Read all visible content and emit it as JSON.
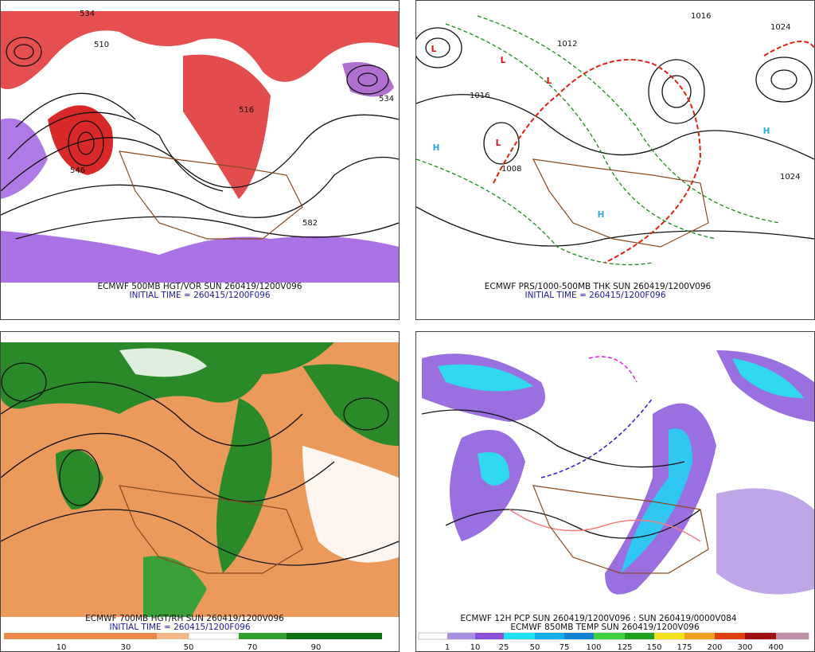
{
  "panels": [
    {
      "caption": "ECMWF 500MB HGT/VOR SUN 260419/1200V096",
      "initial_time": "INITIAL TIME = 260415/1200F096",
      "contour_labels": [
        "534",
        "510",
        "546",
        "582",
        "534",
        "516"
      ]
    },
    {
      "caption": "ECMWF PRS/1000-500MB THK SUN 260419/1200V096",
      "initial_time": "INITIAL TIME = 260415/1200F096",
      "contour_labels": [
        "1016",
        "1008",
        "1024",
        "1012",
        "1016",
        "1024"
      ],
      "pressure_centers": [
        "L",
        "L",
        "L",
        "L",
        "H",
        "H",
        "H"
      ]
    },
    {
      "caption": "ECMWF 700MB HGT/RH SUN 260419/1200V096",
      "initial_time": "INITIAL TIME = 260415/1200F096",
      "colorbar_labels": [
        "10",
        "30",
        "50",
        "70",
        "90"
      ]
    },
    {
      "caption": "ECMWF 12H PCP SUN 260419/1200V096 : SUN 260419/0000V084",
      "initial_time": "ECMWF 850MB TEMP SUN 260419/1200V096",
      "colorbar_labels": [
        "1",
        "10",
        "25",
        "50",
        "75",
        "100",
        "125",
        "150",
        "175",
        "200",
        "300",
        "400"
      ]
    }
  ]
}
